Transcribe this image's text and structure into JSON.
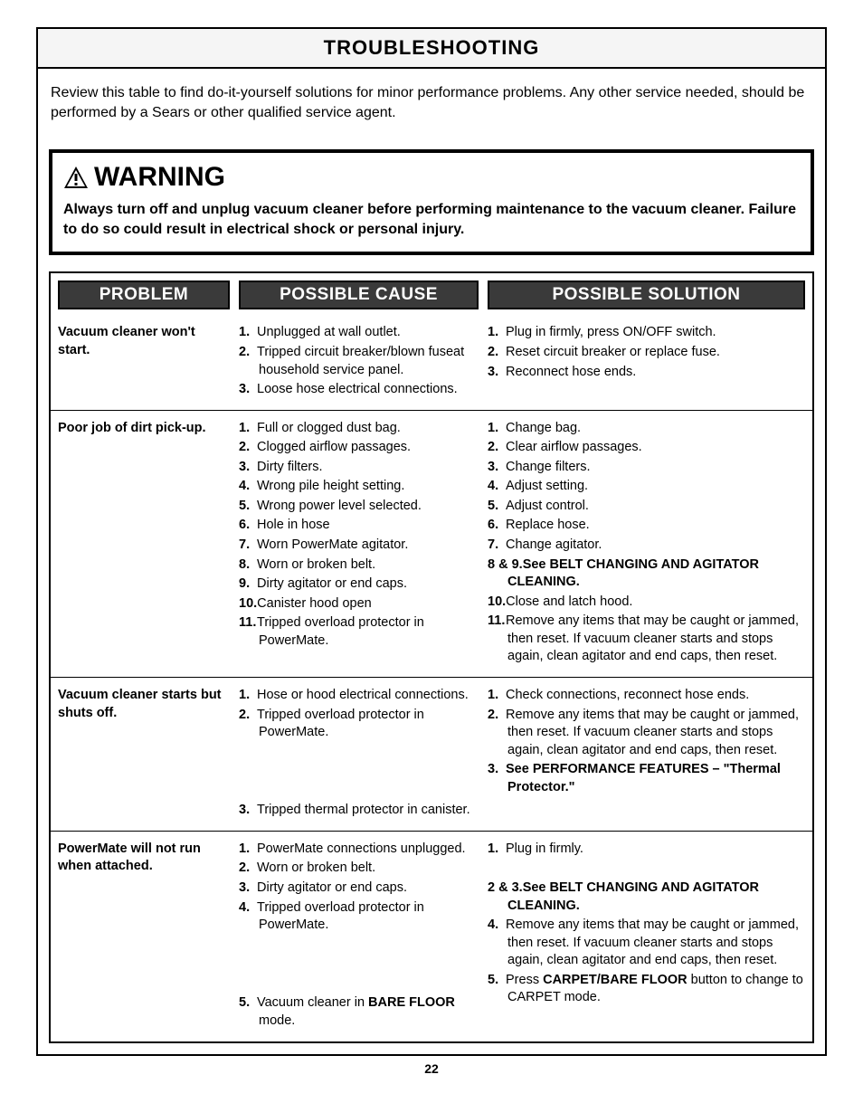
{
  "title": "TROUBLESHOOTING",
  "intro": "Review this table to find do-it-yourself solutions for minor performance problems. Any other service needed, should be performed by a Sears or other qualified service agent.",
  "warning": {
    "label": "WARNING",
    "text_parts": [
      {
        "bold": true,
        "text": "Always turn off and unplug vacuum cleaner "
      },
      {
        "bold": true,
        "text": "before performing maintenance to the vacuum cleaner.  Failure to do so could result in electrical shock or personal injury."
      }
    ]
  },
  "headers": {
    "problem": "PROBLEM",
    "cause": "POSSIBLE CAUSE",
    "solution": "POSSIBLE SOLUTION"
  },
  "rows": [
    {
      "problem": "Vacuum cleaner won't start.",
      "causes": [
        {
          "n": "1.",
          "t": "Unplugged at wall outlet."
        },
        {
          "n": "2.",
          "t": "Tripped circuit breaker/blown fuseat household service panel."
        },
        {
          "n": "3.",
          "t": "Loose hose electrical connections."
        }
      ],
      "solutions": [
        {
          "n": "1.",
          "t": "Plug in firmly, press ON/OFF switch."
        },
        {
          "n": "2.",
          "t": "Reset circuit breaker or replace fuse."
        },
        {
          "n": "3.",
          "t": "Reconnect hose ends."
        }
      ]
    },
    {
      "problem": "Poor job of dirt pick-up.",
      "causes": [
        {
          "n": "1.",
          "t": "Full or clogged dust bag."
        },
        {
          "n": "2.",
          "t": "Clogged airflow passages."
        },
        {
          "n": "3.",
          "t": "Dirty filters."
        },
        {
          "n": "4.",
          "t": "Wrong pile height setting."
        },
        {
          "n": "5.",
          "t": "Wrong power level selected."
        },
        {
          "n": "6.",
          "t": "Hole in hose"
        },
        {
          "n": "7.",
          "t": "Worn PowerMate agitator."
        },
        {
          "n": "8.",
          "t": "Worn or broken belt."
        },
        {
          "n": "9.",
          "t": "Dirty agitator or end caps."
        },
        {
          "n": "10.",
          "t": "Canister hood open"
        },
        {
          "n": "11.",
          "t": "Tripped overload protector in PowerMate."
        }
      ],
      "solutions": [
        {
          "n": "1.",
          "t": "Change bag."
        },
        {
          "n": "2.",
          "t": "Clear airflow passages."
        },
        {
          "n": "3.",
          "t": "Change filters."
        },
        {
          "n": "4.",
          "t": "Adjust setting."
        },
        {
          "n": "5.",
          "t": "Adjust control."
        },
        {
          "n": "6.",
          "t": "Replace hose."
        },
        {
          "n": "7.",
          "t": "Change agitator."
        },
        {
          "n": "8 & 9.",
          "t": "See BELT CHANGING AND AGITATOR CLEANING.",
          "bold_tail": true
        },
        {
          "n": "10.",
          "t": "Close and latch hood."
        },
        {
          "n": "11.",
          "t": "Remove any items that may be caught or jammed, then reset.  If vacuum cleaner starts and stops again, clean agitator and end caps, then reset."
        }
      ]
    },
    {
      "problem": "Vacuum cleaner starts but shuts off.",
      "causes": [
        {
          "n": "1.",
          "t": "Hose or hood electrical connections."
        },
        {
          "n": "2.",
          "t": "Tripped overload protector in PowerMate."
        },
        {
          "n": "",
          "t": "",
          "spacer": true
        },
        {
          "n": "",
          "t": "",
          "spacer": true
        },
        {
          "n": "",
          "t": "",
          "spacer": true
        },
        {
          "n": "3.",
          "t": "Tripped thermal protector in canister."
        }
      ],
      "solutions": [
        {
          "n": "1.",
          "t": "Check connections, reconnect hose ends."
        },
        {
          "n": "2.",
          "t": "Remove any items that may be caught or jammed, then reset.  If vacuum cleaner starts and stops again, clean agitator and end caps, then reset."
        },
        {
          "n": "3.",
          "t": "See PERFORMANCE FEATURES – \"Thermal Protector.\"",
          "bold_tail": true
        }
      ]
    },
    {
      "problem": "PowerMate will not run when attached.",
      "causes": [
        {
          "n": "1.",
          "t": "PowerMate connections unplugged."
        },
        {
          "n": "2.",
          "t": "Worn or broken belt."
        },
        {
          "n": "3.",
          "t": "Dirty agitator or end caps."
        },
        {
          "n": "4.",
          "t": "Tripped overload protector in PowerMate."
        },
        {
          "n": "",
          "t": "",
          "spacer": true
        },
        {
          "n": "",
          "t": "",
          "spacer": true
        },
        {
          "n": "",
          "t": "",
          "spacer": true
        },
        {
          "n": "5.",
          "t": "Vacuum cleaner in BARE FLOOR mode.",
          "bold_inline": [
            "BARE FLOOR"
          ]
        }
      ],
      "solutions": [
        {
          "n": "1.",
          "t": "Plug in firmly."
        },
        {
          "n": "",
          "t": "",
          "spacer": true
        },
        {
          "n": "2 & 3.",
          "t": "See BELT CHANGING AND AGITATOR CLEANING.",
          "bold_tail": true
        },
        {
          "n": "4.",
          "t": "Remove any items that may be caught or jammed, then reset.  If vacuum cleaner starts and stops again, clean agitator and end caps, then reset."
        },
        {
          "n": "5.",
          "t": "Press CARPET/BARE FLOOR button to change to CARPET mode.",
          "bold_inline": [
            "CARPET/BARE FLOOR",
            "CARPET"
          ]
        }
      ]
    }
  ],
  "page_number": "22",
  "colors": {
    "header_bg": "#3a3a3a",
    "header_fg": "#ffffff",
    "border": "#000000",
    "bg": "#ffffff"
  }
}
